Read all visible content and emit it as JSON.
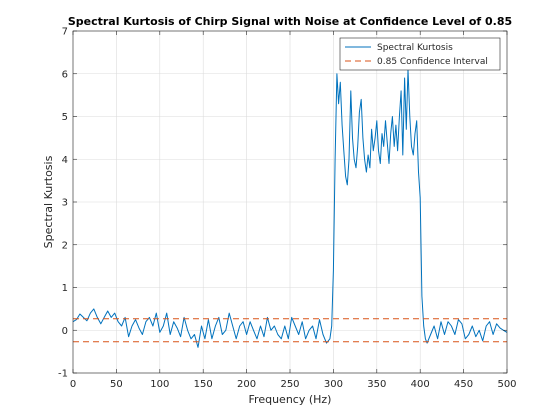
{
  "chart_data": {
    "type": "line",
    "title": "Spectral Kurtosis of Chirp Signal with Noise at Confidence Level of 0.85",
    "xlabel": "Frequency (Hz)",
    "ylabel": "Spectral Kurtosis",
    "xlim": [
      0,
      500
    ],
    "ylim": [
      -1,
      7
    ],
    "xticks": [
      "0",
      "50",
      "100",
      "150",
      "200",
      "250",
      "300",
      "350",
      "400",
      "450",
      "500"
    ],
    "yticks": [
      "-1",
      "0",
      "1",
      "2",
      "3",
      "4",
      "5",
      "6",
      "7"
    ],
    "grid": true,
    "legend": {
      "position": "top-right",
      "entries": [
        "Spectral Kurtosis",
        "0.85 Confidence Interval"
      ]
    },
    "colors": {
      "kurtosis": "#0072bd",
      "confidence": "#d95319",
      "grid": "#dcdcdc",
      "axes": "#262626"
    },
    "series": [
      {
        "name": "Spectral Kurtosis",
        "x": [
          0,
          4,
          8,
          12,
          16,
          20,
          24,
          28,
          32,
          36,
          40,
          44,
          48,
          52,
          56,
          60,
          64,
          68,
          72,
          76,
          80,
          84,
          88,
          92,
          96,
          100,
          104,
          108,
          112,
          116,
          120,
          124,
          128,
          132,
          136,
          140,
          144,
          148,
          152,
          156,
          160,
          164,
          168,
          172,
          176,
          180,
          184,
          188,
          192,
          196,
          200,
          204,
          208,
          212,
          216,
          220,
          224,
          228,
          232,
          236,
          240,
          244,
          248,
          252,
          256,
          260,
          264,
          268,
          272,
          276,
          280,
          284,
          288,
          292,
          296,
          298,
          300,
          302,
          304,
          306,
          308,
          310,
          312,
          314,
          316,
          318,
          320,
          322,
          324,
          326,
          328,
          330,
          332,
          334,
          336,
          338,
          340,
          342,
          344,
          346,
          348,
          350,
          352,
          354,
          356,
          358,
          360,
          362,
          364,
          366,
          368,
          370,
          372,
          374,
          376,
          378,
          380,
          382,
          384,
          386,
          388,
          390,
          392,
          394,
          396,
          398,
          400,
          402,
          404,
          406,
          408,
          412,
          416,
          420,
          424,
          428,
          432,
          436,
          440,
          444,
          448,
          452,
          456,
          460,
          464,
          468,
          472,
          476,
          480,
          484,
          488,
          492,
          496,
          500
        ],
        "values": [
          0.2,
          0.25,
          0.38,
          0.3,
          0.22,
          0.4,
          0.5,
          0.3,
          0.15,
          0.3,
          0.45,
          0.3,
          0.4,
          0.2,
          0.1,
          0.3,
          -0.15,
          0.1,
          0.25,
          0.05,
          -0.1,
          0.2,
          0.3,
          0.1,
          0.4,
          -0.05,
          0.1,
          0.4,
          -0.1,
          0.2,
          0.05,
          -0.15,
          0.3,
          0.0,
          -0.2,
          -0.1,
          -0.4,
          0.1,
          -0.2,
          0.25,
          -0.2,
          0.1,
          0.3,
          -0.1,
          0.0,
          0.4,
          0.1,
          -0.2,
          0.1,
          0.2,
          -0.1,
          0.2,
          0.0,
          -0.2,
          0.1,
          -0.15,
          0.3,
          0.0,
          0.1,
          -0.1,
          -0.2,
          0.1,
          -0.2,
          0.3,
          0.1,
          -0.1,
          0.2,
          -0.2,
          0.0,
          0.1,
          -0.2,
          0.25,
          -0.1,
          -0.3,
          -0.2,
          0.1,
          1.4,
          4.0,
          6.0,
          5.3,
          5.8,
          4.8,
          4.2,
          3.6,
          3.4,
          4.0,
          5.6,
          4.5,
          4.0,
          3.8,
          4.3,
          5.1,
          5.4,
          4.5,
          4.0,
          3.7,
          4.1,
          3.8,
          4.7,
          4.2,
          4.5,
          4.9,
          4.2,
          3.9,
          4.6,
          4.3,
          4.9,
          4.4,
          3.9,
          4.6,
          5.0,
          4.3,
          4.8,
          4.2,
          5.0,
          5.6,
          4.1,
          5.9,
          4.7,
          6.1,
          5.0,
          4.3,
          4.1,
          4.6,
          4.9,
          3.7,
          3.1,
          0.8,
          0.1,
          -0.2,
          -0.3,
          -0.1,
          0.1,
          -0.2,
          0.2,
          -0.1,
          0.2,
          0.1,
          -0.1,
          0.25,
          0.15,
          -0.2,
          -0.1,
          0.1,
          -0.15,
          0.0,
          -0.25,
          0.1,
          0.2,
          -0.1,
          0.15,
          0.05,
          0.0,
          -0.05
        ]
      },
      {
        "name": "0.85 Confidence Interval",
        "x": [
          0,
          500
        ],
        "values_upper": [
          0.27,
          0.27
        ],
        "values_lower": [
          -0.27,
          -0.27
        ]
      }
    ]
  }
}
